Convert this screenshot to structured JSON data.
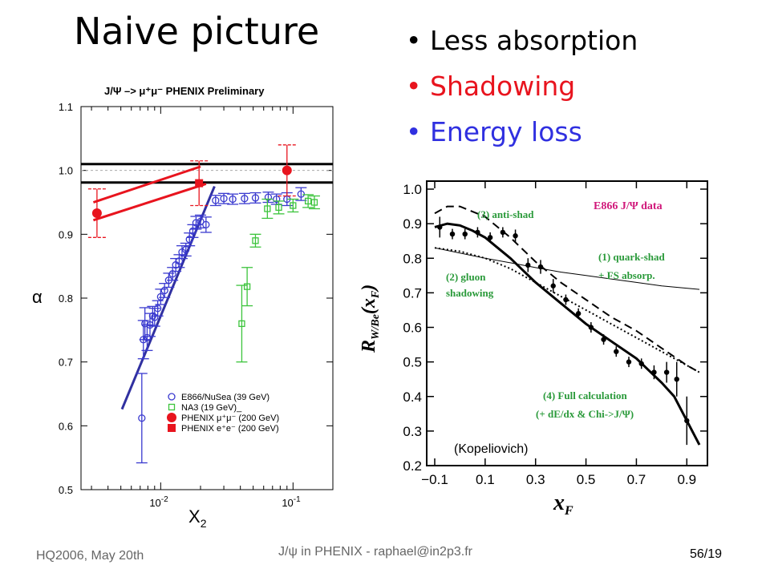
{
  "slide": {
    "title": "Naive picture",
    "bullets": [
      {
        "text": "Less absorption",
        "color": "#000000"
      },
      {
        "text": "Shadowing",
        "color": "#e8141e"
      },
      {
        "text": "Energy loss",
        "color": "#3030e0"
      }
    ],
    "footer": {
      "left": "HQ2006, May 20th",
      "center": "J/ψ in PHENIX - raphael@in2p3.fr",
      "right": "56/19"
    }
  },
  "chart_data": [
    {
      "type": "scatter",
      "title": "J/Ψ –> μ⁺μ⁻  PHENIX Preliminary",
      "xlabel": "X",
      "xlabel_sub": "2",
      "ylabel": "α",
      "x_scale": "log",
      "xlim": [
        0.0025,
        0.2
      ],
      "ylim": [
        0.5,
        1.1
      ],
      "y_ticks": [
        "0.5",
        "0.6",
        "0.7",
        "0.8",
        "0.9",
        "1.0",
        "1.1"
      ],
      "x_tick_labels": [
        {
          "base": "10",
          "exp": "-2",
          "value": 0.01
        },
        {
          "base": "10",
          "exp": "-1",
          "value": 0.1
        }
      ],
      "legend_position": "bottom-right",
      "series": [
        {
          "name": "E866/NuSea (39 GeV)",
          "marker": "open-circle",
          "color": "#3a3acf",
          "points": [
            [
              0.0072,
              0.612,
              0.07
            ],
            [
              0.0074,
              0.735,
              0.03
            ],
            [
              0.0076,
              0.76,
              0.025
            ],
            [
              0.0079,
              0.738,
              0.02
            ],
            [
              0.0083,
              0.758,
              0.018
            ],
            [
              0.0087,
              0.772,
              0.015
            ],
            [
              0.009,
              0.77,
              0.014
            ],
            [
              0.0095,
              0.784,
              0.012
            ],
            [
              0.01,
              0.802,
              0.012
            ],
            [
              0.0107,
              0.812,
              0.011
            ],
            [
              0.0115,
              0.828,
              0.011
            ],
            [
              0.0123,
              0.838,
              0.01
            ],
            [
              0.013,
              0.852,
              0.01
            ],
            [
              0.0138,
              0.858,
              0.01
            ],
            [
              0.0145,
              0.872,
              0.01
            ],
            [
              0.0155,
              0.876,
              0.01
            ],
            [
              0.0165,
              0.892,
              0.01
            ],
            [
              0.0175,
              0.905,
              0.01
            ],
            [
              0.0185,
              0.918,
              0.01
            ],
            [
              0.02,
              0.92,
              0.01
            ],
            [
              0.022,
              0.915,
              0.012
            ],
            [
              0.026,
              0.953,
              0.008
            ],
            [
              0.03,
              0.956,
              0.008
            ],
            [
              0.035,
              0.955,
              0.008
            ],
            [
              0.043,
              0.956,
              0.008
            ],
            [
              0.052,
              0.957,
              0.008
            ],
            [
              0.065,
              0.958,
              0.008
            ],
            [
              0.075,
              0.955,
              0.008
            ],
            [
              0.09,
              0.955,
              0.01
            ],
            [
              0.115,
              0.963,
              0.01
            ]
          ]
        },
        {
          "name": "NA3 (19 GeV)_",
          "marker": "open-square",
          "color": "#3cc43c",
          "points": [
            [
              0.041,
              0.76,
              0.06
            ],
            [
              0.045,
              0.818,
              0.03
            ],
            [
              0.052,
              0.89,
              0.01
            ],
            [
              0.064,
              0.94,
              0.015
            ],
            [
              0.078,
              0.942,
              0.01
            ],
            [
              0.1,
              0.945,
              0.01
            ],
            [
              0.13,
              0.952,
              0.01
            ],
            [
              0.145,
              0.95,
              0.01
            ]
          ]
        },
        {
          "name": "PHENIX μ⁺μ⁻ (200 GeV)",
          "marker": "filled-circle",
          "color": "#e8141e",
          "points": [
            [
              0.0033,
              0.933,
              0.038
            ],
            [
              0.09,
              1.0,
              0.04
            ]
          ]
        },
        {
          "name": "PHENIX e⁺e⁻ (200 GeV)",
          "marker": "filled-square",
          "color": "#e8141e",
          "points": [
            [
              0.0195,
              0.98,
              0.035
            ]
          ]
        }
      ],
      "overlay_lines": [
        {
          "color": "#000000",
          "points": [
            [
              0.0025,
              1.01
            ],
            [
              0.2,
              1.01
            ]
          ]
        },
        {
          "color": "#000000",
          "points": [
            [
              0.0025,
              0.981
            ],
            [
              0.2,
              0.981
            ]
          ]
        },
        {
          "color": "#e8141e",
          "points": [
            [
              0.0031,
              0.95
            ],
            [
              0.02,
              1.006
            ]
          ]
        },
        {
          "color": "#e8141e",
          "points": [
            [
              0.0031,
              0.922
            ],
            [
              0.022,
              0.979
            ]
          ]
        },
        {
          "color": "#3030a0",
          "points": [
            [
              0.0051,
              0.626
            ],
            [
              0.0255,
              0.975
            ]
          ]
        }
      ],
      "dashed_reference": 1.0
    },
    {
      "type": "line",
      "ylabel_main": "R",
      "ylabel_sub": "W/Be",
      "ylabel_arg": "(x",
      "ylabel_arg_sub": "F",
      "ylabel_close": ")",
      "xlabel_main": "x",
      "xlabel_sub": "F",
      "xlim": [
        -0.1,
        0.95
      ],
      "ylim": [
        0.2,
        1.0
      ],
      "x_ticks": [
        "−0.1",
        "0.1",
        "0.3",
        "0.5",
        "0.7",
        "0.9"
      ],
      "y_ticks": [
        "0.2",
        "0.3",
        "0.4",
        "0.5",
        "0.6",
        "0.7",
        "0.8",
        "0.9",
        "1.0"
      ],
      "annotations": [
        {
          "text": "E866 J/Ψ data",
          "color": "#d0187a"
        },
        {
          "text": "(3) anti-shad",
          "color": "#2a9a3a"
        },
        {
          "text": "(1) quark-shad",
          "color": "#2a9a3a"
        },
        {
          "text": "+ FS absorp.",
          "color": "#2a9a3a"
        },
        {
          "text": "(2) gluon",
          "color": "#2a9a3a"
        },
        {
          "text": "shadowing",
          "color": "#2a9a3a"
        },
        {
          "text": "(4) Full calculation",
          "color": "#2a9a3a"
        },
        {
          "text": "(+ dE/dx & Chi->J/Ψ)",
          "color": "#2a9a3a"
        },
        {
          "text": "(Kopeliovich)",
          "color": "#000000"
        }
      ],
      "data_points": {
        "name": "E866 J/Ψ data",
        "points": [
          [
            -0.08,
            0.89,
            0.03
          ],
          [
            -0.03,
            0.87,
            0.015
          ],
          [
            0.02,
            0.87,
            0.015
          ],
          [
            0.07,
            0.875,
            0.015
          ],
          [
            0.12,
            0.86,
            0.015
          ],
          [
            0.17,
            0.875,
            0.015
          ],
          [
            0.22,
            0.865,
            0.018
          ],
          [
            0.27,
            0.78,
            0.02
          ],
          [
            0.32,
            0.775,
            0.02
          ],
          [
            0.37,
            0.72,
            0.02
          ],
          [
            0.42,
            0.68,
            0.015
          ],
          [
            0.47,
            0.64,
            0.015
          ],
          [
            0.52,
            0.6,
            0.015
          ],
          [
            0.57,
            0.565,
            0.015
          ],
          [
            0.62,
            0.53,
            0.015
          ],
          [
            0.67,
            0.5,
            0.015
          ],
          [
            0.72,
            0.495,
            0.015
          ],
          [
            0.77,
            0.47,
            0.02
          ],
          [
            0.82,
            0.47,
            0.03
          ],
          [
            0.86,
            0.45,
            0.05
          ],
          [
            0.9,
            0.33,
            0.07
          ]
        ]
      },
      "curves": [
        {
          "name": "(1) quark-shad + FS absorp.",
          "style": "thin",
          "x": [
            -0.1,
            0.0,
            0.1,
            0.2,
            0.3,
            0.4,
            0.5,
            0.6,
            0.7,
            0.8,
            0.95
          ],
          "y": [
            0.83,
            0.815,
            0.8,
            0.787,
            0.773,
            0.76,
            0.75,
            0.74,
            0.73,
            0.72,
            0.71
          ]
        },
        {
          "name": "(2) gluon shadowing",
          "style": "dotted",
          "x": [
            -0.1,
            0.0,
            0.1,
            0.2,
            0.3,
            0.4,
            0.5,
            0.6,
            0.7,
            0.8,
            0.9,
            0.95
          ],
          "y": [
            0.83,
            0.82,
            0.8,
            0.77,
            0.73,
            0.69,
            0.65,
            0.61,
            0.57,
            0.53,
            0.49,
            0.47
          ]
        },
        {
          "name": "(3) anti-shad",
          "style": "dashed",
          "x": [
            -0.1,
            -0.05,
            0.0,
            0.1,
            0.2,
            0.3,
            0.4,
            0.5,
            0.6,
            0.7,
            0.8,
            0.9,
            0.95
          ],
          "y": [
            0.93,
            0.95,
            0.95,
            0.92,
            0.86,
            0.79,
            0.73,
            0.68,
            0.63,
            0.59,
            0.54,
            0.49,
            0.47
          ]
        },
        {
          "name": "(4) Full calculation (+ dE/dx & Chi->J/Ψ)",
          "style": "thick",
          "x": [
            -0.1,
            -0.05,
            0.0,
            0.05,
            0.1,
            0.15,
            0.2,
            0.3,
            0.4,
            0.5,
            0.6,
            0.7,
            0.8,
            0.85,
            0.9,
            0.95
          ],
          "y": [
            0.89,
            0.9,
            0.895,
            0.88,
            0.86,
            0.83,
            0.8,
            0.73,
            0.67,
            0.61,
            0.56,
            0.51,
            0.44,
            0.4,
            0.33,
            0.26
          ]
        }
      ]
    }
  ]
}
